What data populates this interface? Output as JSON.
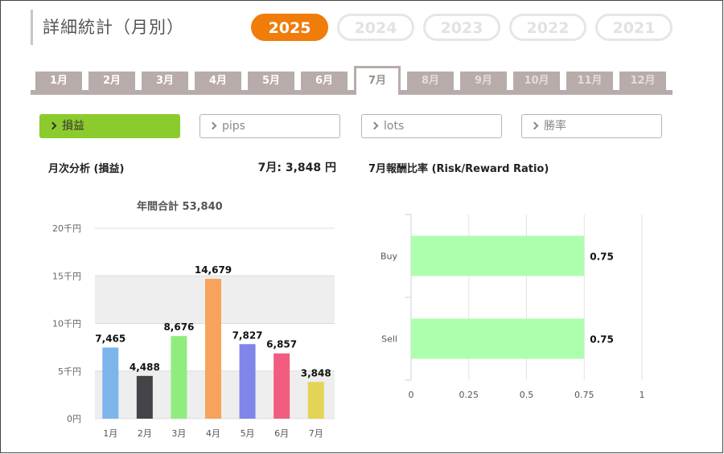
{
  "header": {
    "title": "詳細統計（月別）",
    "years": [
      {
        "label": "2025",
        "active": true
      },
      {
        "label": "2024",
        "active": false
      },
      {
        "label": "2023",
        "active": false
      },
      {
        "label": "2022",
        "active": false
      },
      {
        "label": "2021",
        "active": false
      }
    ]
  },
  "months": [
    {
      "label": "1月",
      "state": "normal"
    },
    {
      "label": "2月",
      "state": "normal"
    },
    {
      "label": "3月",
      "state": "normal"
    },
    {
      "label": "4月",
      "state": "normal"
    },
    {
      "label": "5月",
      "state": "normal"
    },
    {
      "label": "6月",
      "state": "normal"
    },
    {
      "label": "7月",
      "state": "active"
    },
    {
      "label": "8月",
      "state": "future"
    },
    {
      "label": "9月",
      "state": "future"
    },
    {
      "label": "10月",
      "state": "future"
    },
    {
      "label": "11月",
      "state": "future"
    },
    {
      "label": "12月",
      "state": "future"
    }
  ],
  "categories": [
    {
      "label": "損益",
      "active": true
    },
    {
      "label": "pips",
      "active": false
    },
    {
      "label": "lots",
      "active": false
    },
    {
      "label": "勝率",
      "active": false
    }
  ],
  "monthly_section": {
    "label": "月次分析 (損益)",
    "month_total": "7月:  3,848 円"
  },
  "rr_section": {
    "label": "7月報酬比率 (Risk/Reward Ratio)"
  },
  "colors": {
    "accent_orange": "#f07c0a",
    "active_green": "#8ccb2e",
    "tab_gray": "#b8acab",
    "rr_bar": "#adffad"
  },
  "chart_data": [
    {
      "type": "bar",
      "title": "年間合計 53,840",
      "categories": [
        "1月",
        "2月",
        "3月",
        "4月",
        "5月",
        "6月",
        "7月"
      ],
      "values": [
        7465,
        4488,
        8676,
        14679,
        7827,
        6857,
        3848
      ],
      "value_labels": [
        "7,465",
        "4,488",
        "8,676",
        "14,679",
        "7,827",
        "6,857",
        "3,848"
      ],
      "bar_colors": [
        "#7cb5ec",
        "#434348",
        "#90ed7d",
        "#f7a35c",
        "#8085e9",
        "#f15c80",
        "#e4d354"
      ],
      "yticks": [
        0,
        5000,
        10000,
        15000,
        20000
      ],
      "ytick_labels": [
        "0円",
        "5千円",
        "10千円",
        "15千円",
        "20千円"
      ],
      "ylim": [
        0,
        20000
      ],
      "grid": true
    },
    {
      "type": "bar",
      "orientation": "horizontal",
      "categories": [
        "Buy",
        "Sell"
      ],
      "values": [
        0.75,
        0.75
      ],
      "value_labels": [
        "0.75",
        "0.75"
      ],
      "xticks": [
        0,
        0.25,
        0.5,
        0.75,
        1
      ],
      "xtick_labels": [
        "0",
        "0.25",
        "0.5",
        "0.75",
        "1"
      ],
      "xlim": [
        0,
        1
      ],
      "grid": true
    }
  ]
}
